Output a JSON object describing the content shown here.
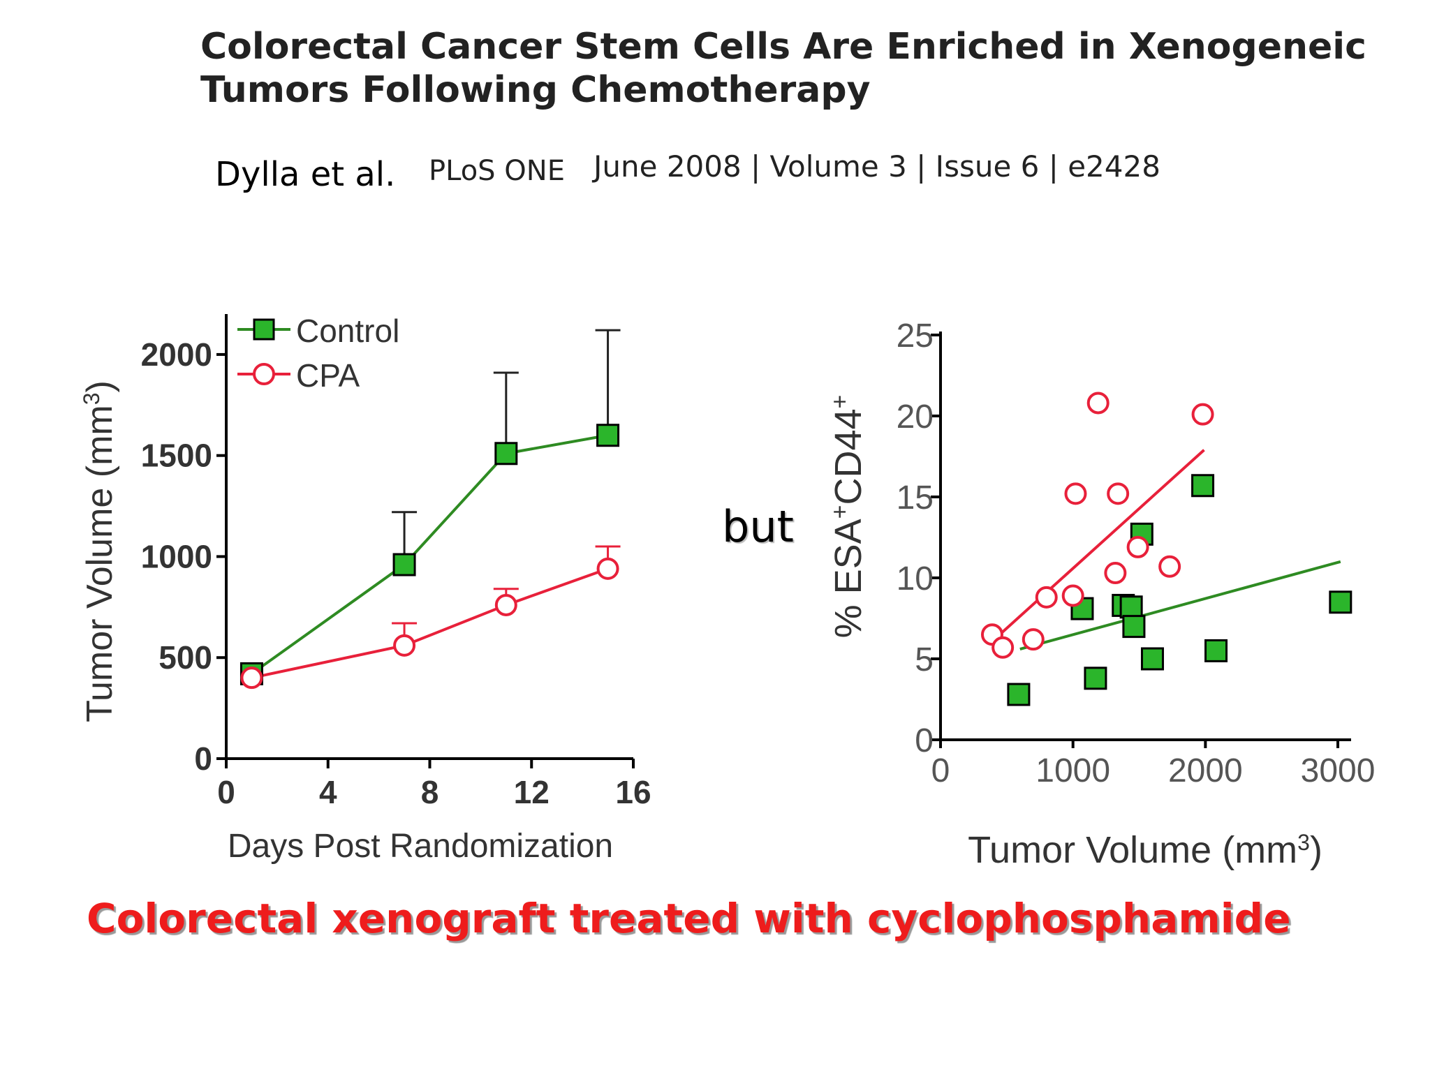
{
  "paper": {
    "title_line1": "Colorectal Cancer Stem Cells Are Enriched in Xenogeneic",
    "title_line2": "Tumors Following Chemotherapy",
    "authors": "Dylla et al.",
    "journal": "PLoS ONE",
    "citation": "June 2008 | Volume 3 | Issue 6 | e2428"
  },
  "connector": "but",
  "caption": "Colorectal xenograft treated with cyclophosphamide",
  "colors": {
    "control": "#2e8b22",
    "control_fill": "#2bb52b",
    "cpa": "#e8203a"
  },
  "chart_data": [
    {
      "type": "line",
      "xlabel": "Days  Post  Randomization",
      "ylabel": "Tumor  Volume (mm",
      "ylabel_sup": "3",
      "ylabel_close": ")",
      "xlim": [
        0,
        16
      ],
      "ylim": [
        0,
        2200
      ],
      "xticks": [
        0,
        4,
        8,
        12,
        16
      ],
      "yticks": [
        0,
        500,
        1000,
        1500,
        2000
      ],
      "legend_position": "top-left",
      "series": [
        {
          "name": "Control",
          "x": [
            1,
            7,
            11,
            15
          ],
          "y": [
            420,
            960,
            1510,
            1600
          ],
          "error_upper": [
            0,
            1220,
            1910,
            2120
          ],
          "marker": "square"
        },
        {
          "name": "CPA",
          "x": [
            1,
            7,
            11,
            15
          ],
          "y": [
            400,
            560,
            760,
            940
          ],
          "error_upper": [
            0,
            670,
            840,
            1050
          ],
          "marker": "circle"
        }
      ]
    },
    {
      "type": "scatter",
      "xlabel": "Tumor Volume (mm",
      "xlabel_sup": "3",
      "xlabel_close": ")",
      "ylabel_pre": "% ESA",
      "ylabel_sup1": "+",
      "ylabel_mid": "CD44",
      "ylabel_sup2": "+",
      "xlim": [
        0,
        3100
      ],
      "ylim": [
        0,
        25
      ],
      "xticks": [
        0,
        1000,
        2000,
        3000
      ],
      "yticks": [
        0,
        5,
        10,
        15,
        20,
        25
      ],
      "series": [
        {
          "marker": "square",
          "color": "control",
          "points": [
            [
              590,
              2.8
            ],
            [
              1070,
              8.1
            ],
            [
              1170,
              3.8
            ],
            [
              1380,
              8.3
            ],
            [
              1440,
              8.2
            ],
            [
              1460,
              7.0
            ],
            [
              1520,
              12.7
            ],
            [
              1600,
              5.0
            ],
            [
              1980,
              15.7
            ],
            [
              2080,
              5.5
            ],
            [
              3020,
              8.5
            ]
          ],
          "fit": [
            [
              600,
              5.6
            ],
            [
              3020,
              11.0
            ]
          ]
        },
        {
          "marker": "circle",
          "color": "cpa",
          "points": [
            [
              390,
              6.5
            ],
            [
              470,
              5.7
            ],
            [
              700,
              6.2
            ],
            [
              800,
              8.8
            ],
            [
              1000,
              8.9
            ],
            [
              1020,
              15.2
            ],
            [
              1190,
              20.8
            ],
            [
              1320,
              10.3
            ],
            [
              1340,
              15.2
            ],
            [
              1490,
              11.9
            ],
            [
              1730,
              10.7
            ],
            [
              1980,
              20.1
            ]
          ],
          "fit": [
            [
              420,
              6.3
            ],
            [
              1990,
              17.9
            ]
          ]
        }
      ]
    }
  ]
}
